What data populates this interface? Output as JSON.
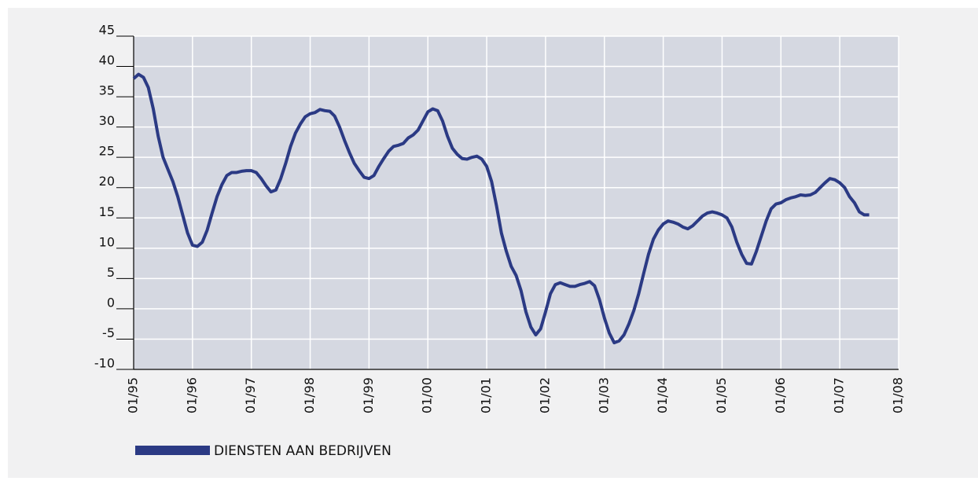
{
  "chart_data": {
    "type": "line",
    "categories": [
      "01/95",
      null,
      null,
      null,
      null,
      null,
      null,
      null,
      null,
      null,
      null,
      null,
      "01/96",
      null,
      null,
      null,
      null,
      null,
      null,
      null,
      null,
      null,
      null,
      null,
      "01/97",
      null,
      null,
      null,
      null,
      null,
      null,
      null,
      null,
      null,
      null,
      null,
      "01/98",
      null,
      null,
      null,
      null,
      null,
      null,
      null,
      null,
      null,
      null,
      null,
      "01/99",
      null,
      null,
      null,
      null,
      null,
      null,
      null,
      null,
      null,
      null,
      null,
      "01/00",
      null,
      null,
      null,
      null,
      null,
      null,
      null,
      null,
      null,
      null,
      null,
      "01/01",
      null,
      null,
      null,
      null,
      null,
      null,
      null,
      null,
      null,
      null,
      null,
      "01/02",
      null,
      null,
      null,
      null,
      null,
      null,
      null,
      null,
      null,
      null,
      null,
      "01/03",
      null,
      null,
      null,
      null,
      null,
      null,
      null,
      null,
      null,
      null,
      null,
      "01/04",
      null,
      null,
      null,
      null,
      null,
      null,
      null,
      null,
      null,
      null,
      null,
      "01/05",
      null,
      null,
      null,
      null,
      null,
      null,
      null,
      null,
      null,
      null,
      null,
      "01/06",
      null,
      null,
      null,
      null,
      null,
      null,
      null,
      null,
      null,
      null,
      null,
      "01/07",
      null,
      null,
      null,
      null,
      null,
      null,
      null,
      null,
      null,
      null,
      null,
      "01/08"
    ],
    "series": [
      {
        "name": "DIENSTEN AAN BEDRIJVEN",
        "color": "#2b3a84",
        "values": [
          38,
          38.7,
          38.2,
          36.5,
          33,
          28.5,
          25,
          23,
          21,
          18.5,
          15.5,
          12.5,
          10.5,
          10.3,
          11,
          13,
          15.8,
          18.5,
          20.5,
          22,
          22.5,
          22.5,
          22.7,
          22.8,
          22.8,
          22.5,
          21.5,
          20.3,
          19.3,
          19.6,
          21.5,
          24,
          26.8,
          29,
          30.5,
          31.7,
          32.2,
          32.4,
          32.9,
          32.7,
          32.6,
          31.8,
          30,
          27.8,
          25.8,
          24,
          22.8,
          21.7,
          21.5,
          22,
          23.5,
          24.8,
          26,
          26.8,
          27,
          27.3,
          28.2,
          28.7,
          29.5,
          31,
          32.5,
          33,
          32.7,
          31,
          28.5,
          26.5,
          25.5,
          24.8,
          24.7,
          25,
          25.2,
          24.7,
          23.5,
          21,
          17,
          12.5,
          9.5,
          7,
          5.5,
          3,
          -0.5,
          -3,
          -4.3,
          -3.3,
          -0.5,
          2.5,
          4,
          4.3,
          4,
          3.7,
          3.7,
          4,
          4.2,
          4.5,
          3.8,
          1.5,
          -1.5,
          -4,
          -5.6,
          -5.3,
          -4.3,
          -2.5,
          -0.3,
          2.5,
          5.8,
          9,
          11.5,
          13,
          14,
          14.5,
          14.3,
          14,
          13.5,
          13.2,
          13.7,
          14.5,
          15.3,
          15.8,
          16,
          15.8,
          15.5,
          15,
          13.5,
          11,
          9,
          7.5,
          7.4,
          9.5,
          12,
          14.5,
          16.5,
          17.3,
          17.5,
          18,
          18.3,
          18.5,
          18.8,
          18.7,
          18.8,
          19.2,
          20,
          20.8,
          21.5,
          21.3,
          20.8,
          20,
          18.5,
          17.5,
          16,
          15.5,
          15.5,
          null,
          null,
          null,
          null,
          null,
          null
        ]
      }
    ],
    "ylim": [
      -10,
      45
    ],
    "yticks": [
      -10,
      -5,
      0,
      5,
      10,
      15,
      20,
      25,
      30,
      35,
      40,
      45
    ],
    "grid": true
  }
}
